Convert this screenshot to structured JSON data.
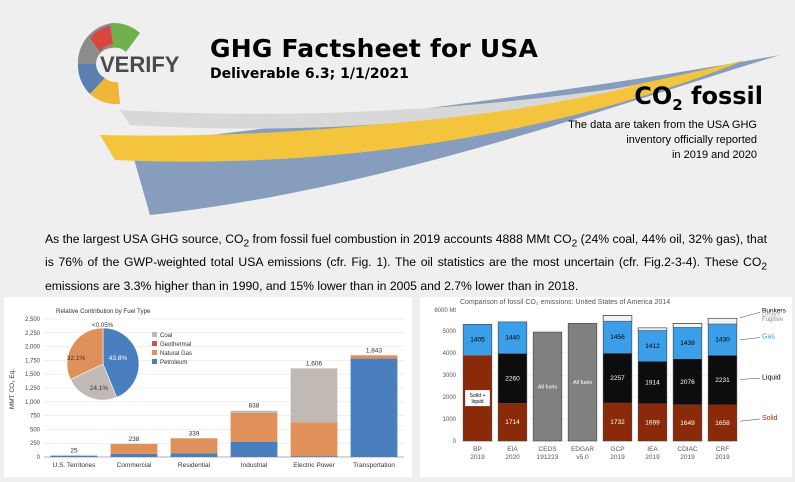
{
  "header": {
    "logo_text": "VERIFY",
    "title": "GHG Factsheet for USA",
    "subtitle": "Deliverable 6.3; 1/1/2021",
    "section_title_main": "CO",
    "section_title_sub": "2",
    "section_title_rest": " fossil",
    "note_lines": [
      "The data are taken from the USA GHG",
      "inventory officially reported",
      "in 2019 and 2020"
    ]
  },
  "paragraph": {
    "p1": "As the largest USA GHG source, CO",
    "p2": " from fossil fuel combustion in 2019 accounts 4888 MMt CO",
    "p3": " (24% coal, 44% oil, 32% gas), that is 76% of the GWP-weighted total USA emissions (cfr. Fig. 1). The oil statistics are the most uncertain (cfr. Fig.2-3-4). These CO",
    "p4": " emissions are 3.3% higher than in 1990, and 15% lower than in 2005 and 2.7% lower than in 2018.",
    "sub": "2"
  },
  "chart_data": [
    {
      "type": "bar",
      "ylabel": "MMT CO₂ Eq.",
      "yticks": [
        "0",
        "250",
        "500",
        "750",
        "1,000",
        "1,250",
        "1,500",
        "1,750",
        "2,000",
        "2,250",
        "2,500"
      ],
      "ylim": [
        0,
        2500
      ],
      "categories": [
        "U.S. Territories",
        "Commercial",
        "Residential",
        "Industrial",
        "Electric Power",
        "Transportation"
      ],
      "totals": [
        25,
        238,
        339,
        838,
        1606,
        1843
      ],
      "total_labels": [
        "25",
        "238",
        "339",
        "838",
        "1,606",
        "1,843"
      ],
      "series": [
        {
          "name": "Coal",
          "color": "#c1b9b4",
          "values": [
            0,
            0,
            0,
            40,
            975,
            0
          ]
        },
        {
          "name": "Geothermal",
          "color": "#c4566b",
          "values": [
            0,
            0,
            0,
            0,
            2,
            0
          ]
        },
        {
          "name": "Natural Gas",
          "color": "#e0915a",
          "values": [
            0,
            180,
            270,
            520,
            614,
            60
          ]
        },
        {
          "name": "Petroleum",
          "color": "#4a7fbf",
          "values": [
            25,
            58,
            69,
            278,
            15,
            1783
          ]
        }
      ],
      "inset_pie": {
        "title": "Relative Contribution by Fuel Type",
        "top_label": "<0.05%",
        "slices": [
          {
            "name": "Petroleum",
            "value": 43.8,
            "label": "43.8%",
            "color": "#4a7fbf"
          },
          {
            "name": "Coal",
            "value": 24.1,
            "label": "24.1%",
            "color": "#c1b9b4"
          },
          {
            "name": "Natural Gas",
            "value": 32.1,
            "label": "32.1%",
            "color": "#e0915a"
          }
        ],
        "legend": [
          {
            "name": "Coal",
            "color": "#c1b9b4"
          },
          {
            "name": "Geothermal",
            "color": "#c4566b"
          },
          {
            "name": "Natural Gas",
            "color": "#e0915a"
          },
          {
            "name": "Petroleum",
            "color": "#4a7fbf"
          }
        ]
      }
    },
    {
      "type": "bar",
      "title": "Comparison of fossil CO₂ emissions: United States of America 2014",
      "yunit": "6000 Mt",
      "ylim": [
        0,
        6000
      ],
      "yticks": [
        "0",
        "1000",
        "2000",
        "3000",
        "4000",
        "5000"
      ],
      "categories": [
        "BP 2019",
        "EIA 2020",
        "CEDS 191223",
        "EDGAR v5.0",
        "GCP 2019",
        "IEA 2019",
        "CDIAC 2019",
        "CRF 2019"
      ],
      "category_lines": [
        [
          "BP",
          "2019"
        ],
        [
          "EIA",
          "2020"
        ],
        [
          "CEDS",
          "191223"
        ],
        [
          "EDGAR",
          "v5.0"
        ],
        [
          "GCP",
          "2019"
        ],
        [
          "IEA",
          "2019"
        ],
        [
          "CDIAC",
          "2019"
        ],
        [
          "CRF",
          "2019"
        ]
      ],
      "series": [
        {
          "name": "Solid",
          "color": "#8b2a08",
          "values": [
            null,
            1714,
            null,
            null,
            1732,
            1699,
            1649,
            1658
          ]
        },
        {
          "name": "Liquid",
          "color": "#0d0d0d",
          "values": [
            null,
            2260,
            null,
            null,
            2257,
            1914,
            2076,
            2231
          ]
        },
        {
          "name": "Gas",
          "color": "#3b9ee8",
          "values": [
            1405,
            1440,
            null,
            null,
            1456,
            1412,
            1439,
            1430
          ]
        }
      ],
      "combined": [
        {
          "category": "BP 2019",
          "label": "Solid + liquid",
          "value": 3900
        },
        {
          "category": "CEDS 191223",
          "label": "All fuels",
          "value": 4950
        },
        {
          "category": "EDGAR v5.0",
          "label": "All fuels",
          "value": 5350
        }
      ],
      "legend": {
        "bunkers": "Bunkers",
        "others": "Others",
        "fugitive": "Fugitive",
        "gas": "Gas",
        "liquid": "Liquid",
        "solid": "Solid"
      },
      "colors": {
        "solid": "#8b2a08",
        "liquid": "#0d0d0d",
        "gas": "#3b9ee8",
        "allfuels": "#808080",
        "bunkers": "#9a9a9a"
      }
    }
  ]
}
